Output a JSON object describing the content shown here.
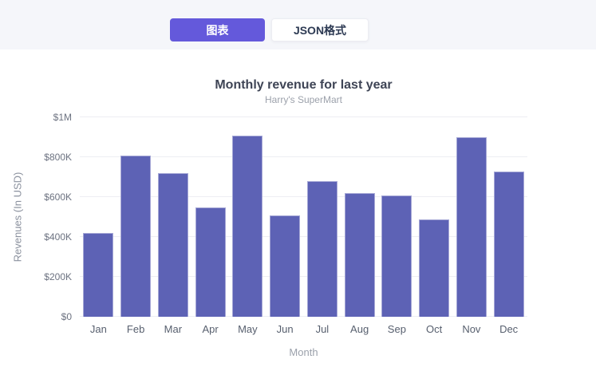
{
  "toggle": {
    "chart_label": "图表",
    "json_label": "JSON格式"
  },
  "chart_data": {
    "type": "bar",
    "title": "Monthly revenue for last year",
    "subtitle": "Harry's SuperMart",
    "xlabel": "Month",
    "ylabel": "Revenues (In USD)",
    "categories": [
      "Jan",
      "Feb",
      "Mar",
      "Apr",
      "May",
      "Jun",
      "Jul",
      "Aug",
      "Sep",
      "Oct",
      "Nov",
      "Dec"
    ],
    "values": [
      420000,
      810000,
      720000,
      550000,
      910000,
      510000,
      680000,
      620000,
      610000,
      490000,
      900000,
      730000
    ],
    "ylim": [
      0,
      1000000
    ],
    "yticks": [
      {
        "value": 0,
        "label": "$0"
      },
      {
        "value": 200000,
        "label": "$200K"
      },
      {
        "value": 400000,
        "label": "$400K"
      },
      {
        "value": 600000,
        "label": "$600K"
      },
      {
        "value": 800000,
        "label": "$800K"
      },
      {
        "value": 1000000,
        "label": "$1M"
      }
    ],
    "grid": true,
    "legend": "none",
    "bar_color": "#5D62B5"
  },
  "colors": {
    "accent": "#6459DB",
    "bar": "#5D62B5",
    "header_bg": "#F5F6FA",
    "gridline": "#EDEEF3"
  }
}
